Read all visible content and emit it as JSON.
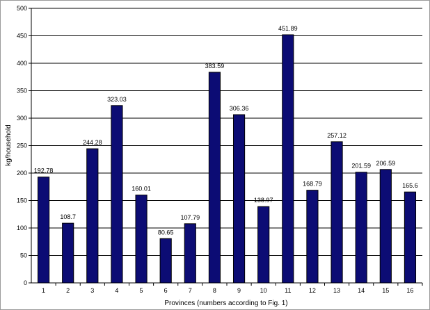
{
  "chart_data": {
    "type": "bar",
    "categories": [
      "1",
      "2",
      "3",
      "4",
      "5",
      "6",
      "7",
      "8",
      "9",
      "10",
      "11",
      "12",
      "13",
      "14",
      "15",
      "16"
    ],
    "values": [
      192.78,
      108.7,
      244.28,
      323.03,
      160.01,
      80.65,
      107.79,
      383.59,
      306.36,
      138.97,
      451.89,
      168.79,
      257.12,
      201.59,
      206.59,
      165.6
    ],
    "data_labels": [
      "192.78",
      "108.7",
      "244.28",
      "323.03",
      "160.01",
      "80.65",
      "107.79",
      "383.59",
      "306.36",
      "138.97",
      "451.89",
      "168.79",
      "257.12",
      "201.59",
      "206.59",
      "165.6"
    ],
    "xlabel": "Provinces (numbers according to Fig. 1)",
    "ylabel": "kg/household",
    "ylim": [
      0,
      500
    ],
    "yticks": [
      0,
      50,
      100,
      150,
      200,
      250,
      300,
      350,
      400,
      450,
      500
    ],
    "grid": "horizontal",
    "legend": "none",
    "colors": {
      "bar": "#0c0c74",
      "bar_outline": "#000000",
      "grid": "#000000",
      "axis": "#000000"
    }
  }
}
